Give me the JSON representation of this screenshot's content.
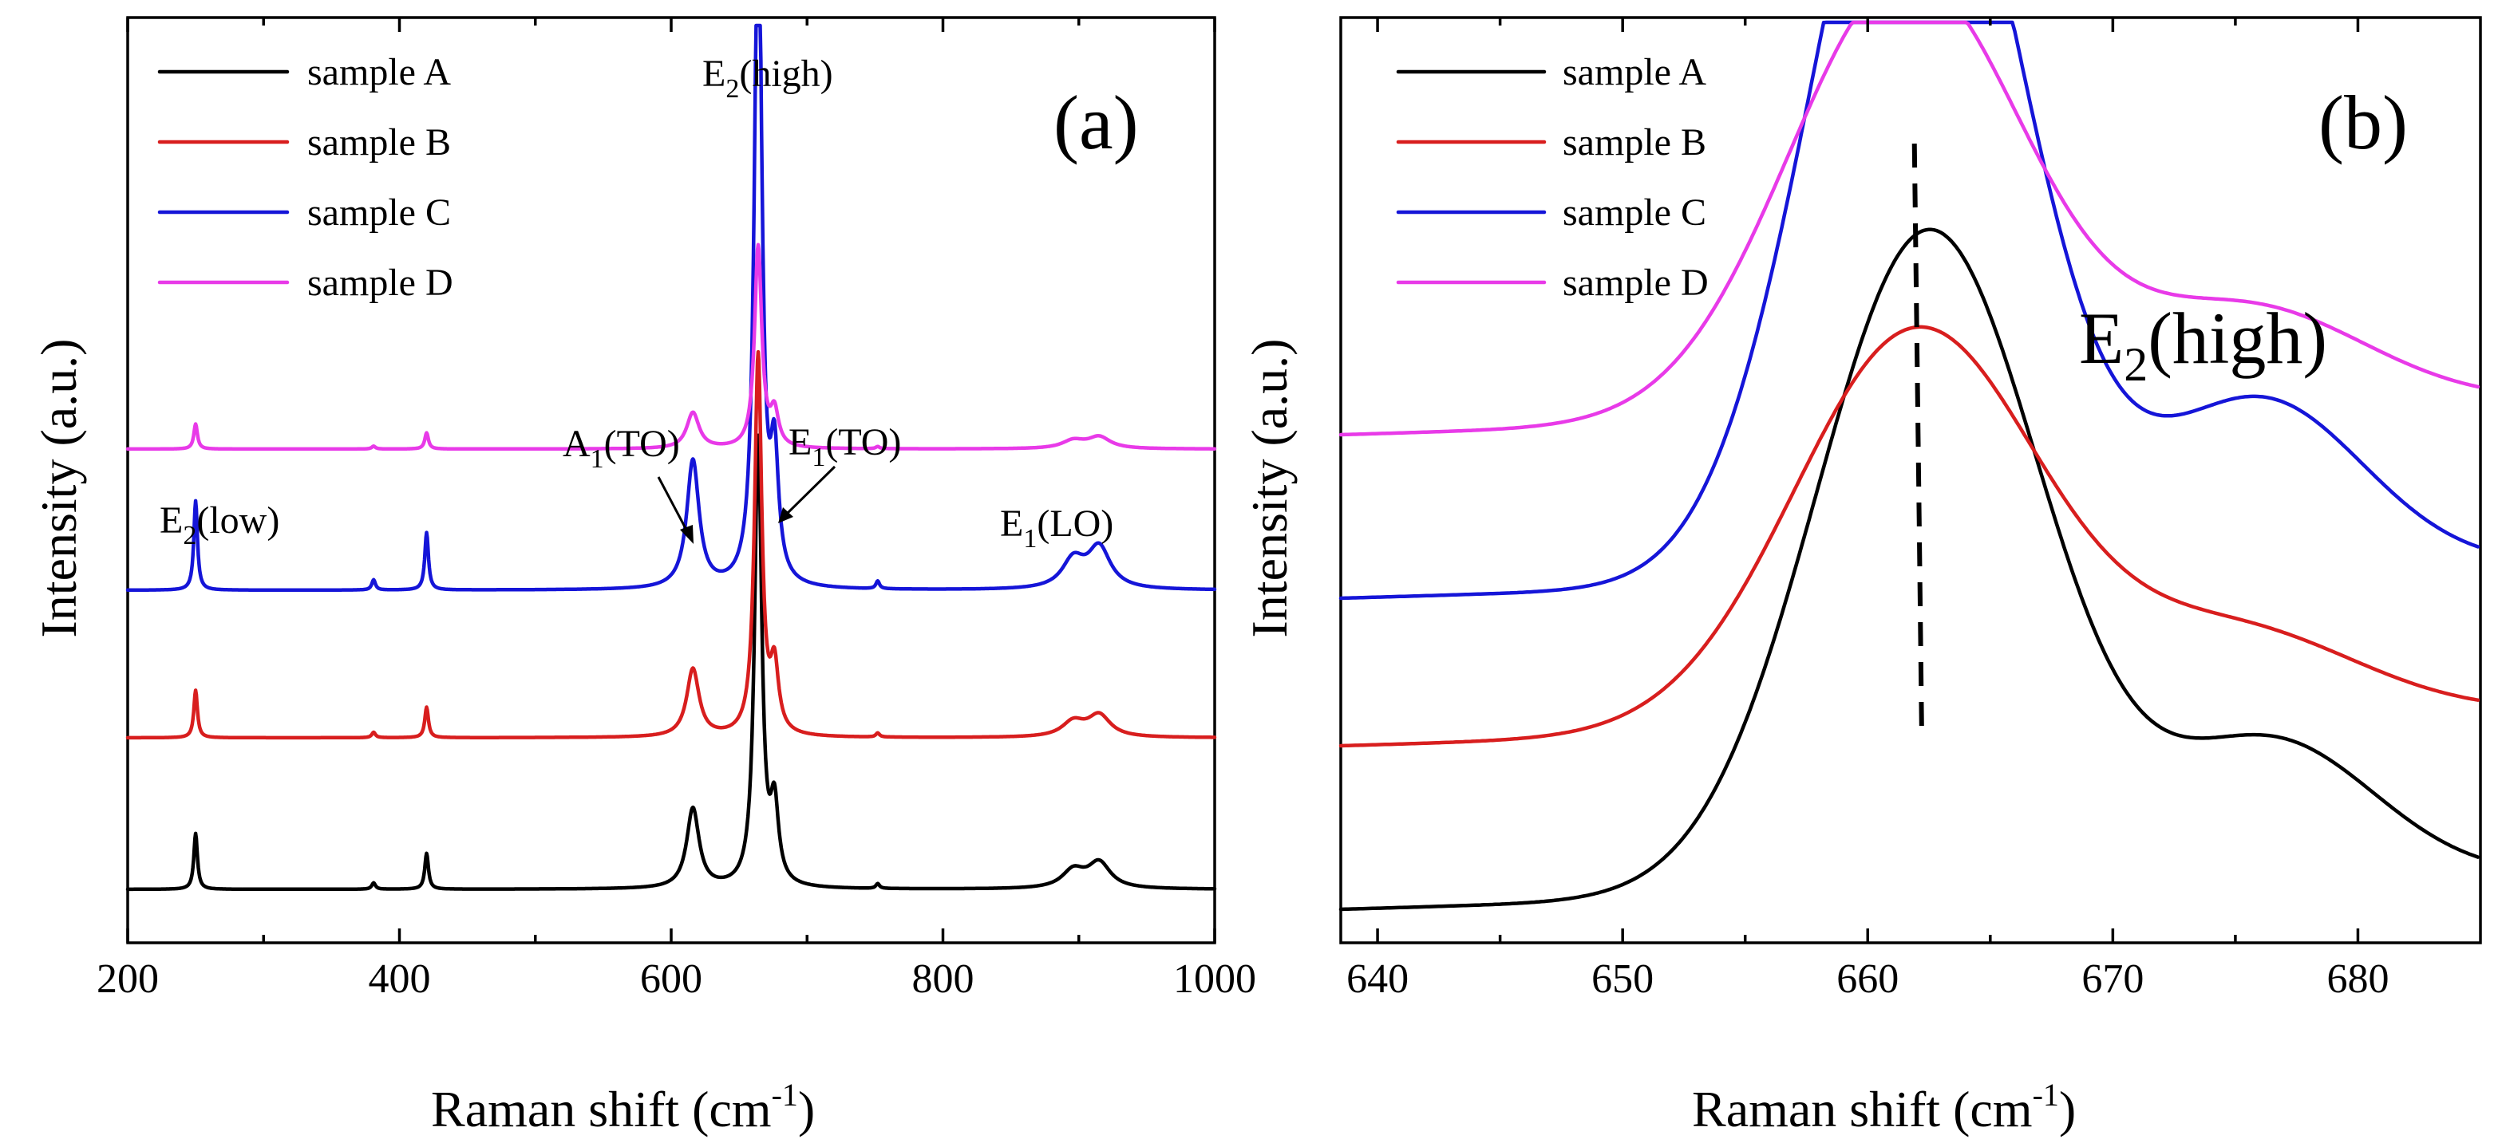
{
  "chart_data": [
    {
      "type": "line",
      "panel_label": "(a)",
      "xlabel": "Raman shift (cm",
      "xlabel_sup": "-1",
      "xlabel_close": ")",
      "ylabel": "Intensity (a.u.)",
      "xlim": [
        200,
        1000
      ],
      "xticks": [
        200,
        400,
        600,
        800,
        1000
      ],
      "grid": false,
      "legend": "top-left",
      "peaks": [
        {
          "x": 250,
          "y": 70
        },
        {
          "x": 381,
          "y": 8
        },
        {
          "x": 420,
          "y": 45
        },
        {
          "x": 616,
          "y": 100
        },
        {
          "x": 664,
          "y": 560
        },
        {
          "x": 676,
          "y": 95
        },
        {
          "x": 752,
          "y": 6
        },
        {
          "x": 896,
          "y": 22
        },
        {
          "x": 915,
          "y": 32
        }
      ],
      "series": [
        {
          "name": "sample A",
          "color": "#000000",
          "offset": 0,
          "scale": 1.0
        },
        {
          "name": "sample B",
          "color": "#d81e1e",
          "offset": 190,
          "scale": 0.85
        },
        {
          "name": "sample C",
          "color": "#1515d8",
          "offset": 375,
          "scale": 1.6
        },
        {
          "name": "sample D",
          "color": "#e83ae8",
          "offset": 552,
          "scale": 0.45
        }
      ],
      "annotations": [
        {
          "base": "E",
          "sub": "2",
          "rest": "(low)"
        },
        {
          "base": "E",
          "sub": "2",
          "rest": "(high)"
        },
        {
          "base": "A",
          "sub": "1",
          "rest": "(TO)"
        },
        {
          "base": "E",
          "sub": "1",
          "rest": "(TO)"
        },
        {
          "base": "E",
          "sub": "1",
          "rest": "(LO)"
        }
      ]
    },
    {
      "type": "line",
      "panel_label": "(b)",
      "xlabel": "Raman shift (cm",
      "xlabel_sup": "-1",
      "xlabel_close": ")",
      "ylabel": "Intensity (a.u.)",
      "xlim": [
        638.5,
        685
      ],
      "xticks": [
        640,
        650,
        660,
        670,
        680
      ],
      "grid": false,
      "legend": "top-left",
      "annotation": {
        "base": "E",
        "sub": "2",
        "rest": "(high)"
      },
      "peak_trend_line": [
        [
          662.2,
          260
        ],
        [
          662.1,
          520
        ],
        [
          661.9,
          1000
        ]
      ],
      "series": [
        {
          "name": "sample A",
          "color": "#000000",
          "base": 30,
          "peak_x": 662.5,
          "peak_h": 830,
          "peak_w": 4.6,
          "shoulder_x": 676.5,
          "shoulder_h": 175,
          "shoulder_w": 4.2
        },
        {
          "name": "sample B",
          "color": "#d81e1e",
          "base": 235,
          "peak_x": 662.0,
          "peak_h": 500,
          "peak_w": 5.0,
          "shoulder_x": 675.0,
          "shoulder_h": 110,
          "shoulder_w": 5.0
        },
        {
          "name": "sample C",
          "color": "#1515d8",
          "base": 420,
          "peak_x": 662.0,
          "peak_h": 1060,
          "peak_w": 4.2,
          "shoulder_x": 676.0,
          "shoulder_h": 215,
          "shoulder_w": 4.2
        },
        {
          "name": "sample D",
          "color": "#e83ae8",
          "base": 625,
          "peak_x": 661.6,
          "peak_h": 555,
          "peak_w": 4.8,
          "shoulder_x": 675.5,
          "shoulder_h": 125,
          "shoulder_w": 4.8
        }
      ]
    }
  ]
}
